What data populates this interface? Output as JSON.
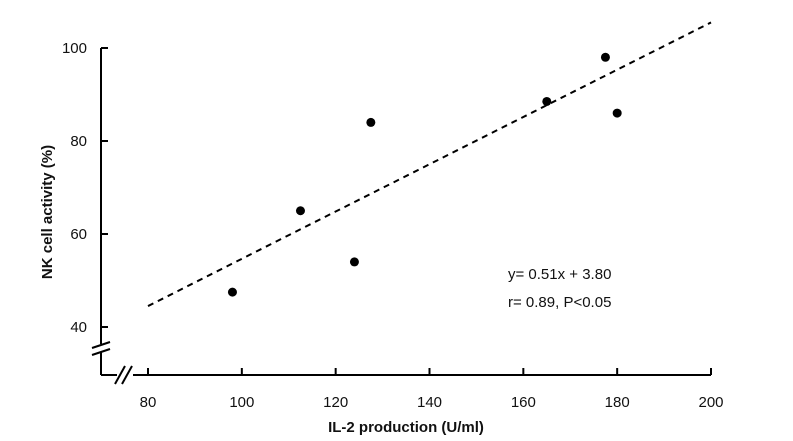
{
  "chart_data": {
    "type": "scatter",
    "title": "",
    "xlabel": "IL-2 production (U/ml)",
    "ylabel": "NK cell activity (%)",
    "xlim": [
      70,
      200
    ],
    "ylim": [
      36,
      100
    ],
    "x_ticks": [
      80,
      100,
      120,
      140,
      160,
      180,
      200
    ],
    "y_ticks": [
      40,
      60,
      80,
      100
    ],
    "x_axis_break": true,
    "y_axis_break": true,
    "grid": false,
    "points": [
      {
        "x": 98,
        "y": 47.5
      },
      {
        "x": 112.5,
        "y": 65
      },
      {
        "x": 124,
        "y": 54
      },
      {
        "x": 127.5,
        "y": 84
      },
      {
        "x": 165,
        "y": 88.5
      },
      {
        "x": 177.5,
        "y": 98
      },
      {
        "x": 180,
        "y": 86
      }
    ],
    "regression": {
      "slope": 0.51,
      "intercept": 3.8,
      "x_range": [
        80,
        200
      ],
      "style": "dashed"
    },
    "annotations": [
      "y= 0.51x + 3.80",
      "r= 0.89,  P<0.05"
    ]
  }
}
